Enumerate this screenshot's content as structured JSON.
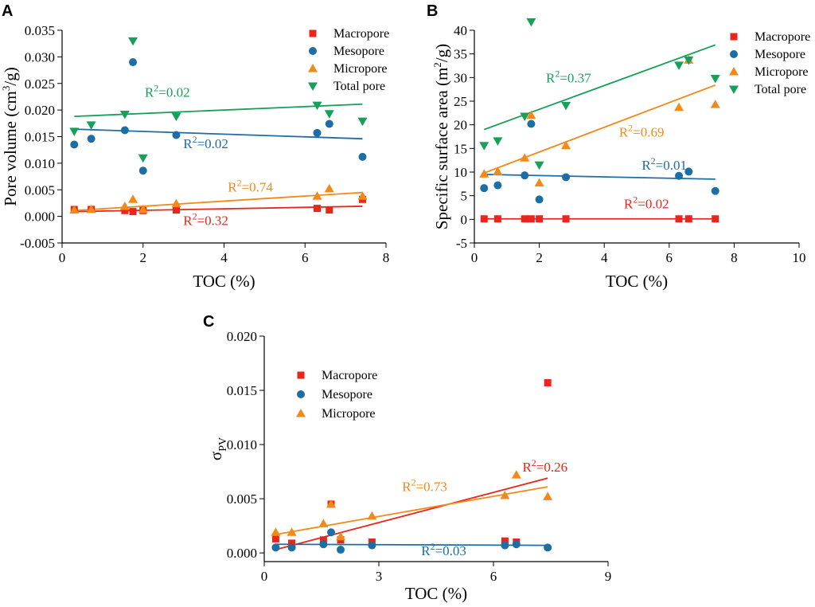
{
  "colors": {
    "Macropore": "#e8261c",
    "Mesopore": "#1c6ea4",
    "Micropore": "#f28a1a",
    "Total pore": "#16a05a"
  },
  "chart_data": [
    {
      "type": "scatter",
      "panel": "A",
      "xlabel": "TOC (%)",
      "ylabel": "Pore volume (cm³/g)",
      "xlim": [
        0,
        8
      ],
      "ylim": [
        -0.005,
        0.035
      ],
      "xticks": [
        0,
        2,
        4,
        6,
        8
      ],
      "yticks": [
        -0.005,
        0.0,
        0.005,
        0.01,
        0.015,
        0.02,
        0.025,
        0.03,
        0.035
      ],
      "ytick_decimals": 3,
      "legend_position": "top-right",
      "series": [
        {
          "name": "Macropore",
          "marker": "square",
          "x": [
            0.3,
            0.72,
            1.55,
            1.75,
            2.0,
            2.82,
            6.3,
            6.6,
            7.42
          ],
          "y": [
            0.0013,
            0.0013,
            0.0011,
            0.0009,
            0.0011,
            0.0012,
            0.0015,
            0.0012,
            0.0032
          ],
          "fit": {
            "x": [
              0.3,
              7.42
            ],
            "y": [
              0.0009,
              0.0019
            ]
          },
          "r2": "R²=0.32"
        },
        {
          "name": "Mesopore",
          "marker": "circle",
          "x": [
            0.3,
            0.72,
            1.55,
            1.75,
            2.0,
            2.82,
            6.3,
            6.6,
            7.42
          ],
          "y": [
            0.0135,
            0.0146,
            0.0162,
            0.029,
            0.0086,
            0.0153,
            0.0157,
            0.0174,
            0.0112
          ],
          "fit": {
            "x": [
              0.3,
              7.42
            ],
            "y": [
              0.0164,
              0.0146
            ]
          },
          "r2": "R²=0.02"
        },
        {
          "name": "Micropore",
          "marker": "triangle-up",
          "x": [
            0.3,
            0.72,
            1.55,
            1.75,
            2.0,
            2.82,
            6.3,
            6.6,
            7.42
          ],
          "y": [
            0.0012,
            0.0013,
            0.0019,
            0.0032,
            0.0013,
            0.0024,
            0.0038,
            0.0052,
            0.0038
          ],
          "fit": {
            "x": [
              0.3,
              7.42
            ],
            "y": [
              0.0011,
              0.0045
            ]
          },
          "r2": "R²=0.74"
        },
        {
          "name": "Total pore",
          "marker": "triangle-down",
          "x": [
            0.3,
            0.72,
            1.55,
            1.75,
            2.0,
            2.82,
            6.3,
            6.6,
            7.42
          ],
          "y": [
            0.016,
            0.0172,
            0.0192,
            0.033,
            0.011,
            0.0188,
            0.0209,
            0.0193,
            0.0179
          ],
          "fit": {
            "x": [
              0.3,
              7.42
            ],
            "y": [
              0.0188,
              0.0211
            ]
          },
          "r2": "R²=0.02"
        }
      ],
      "r2_positions": [
        {
          "series": "Total pore",
          "x": 2.6,
          "y": 0.0225
        },
        {
          "series": "Mesopore",
          "x": 3.55,
          "y": 0.0128
        },
        {
          "series": "Micropore",
          "x": 4.65,
          "y": 0.0047
        },
        {
          "series": "Macropore",
          "x": 3.55,
          "y": -0.0016
        }
      ]
    },
    {
      "type": "scatter",
      "panel": "B",
      "xlabel": "TOC (%)",
      "ylabel": "Specific surface area (m²/g)",
      "xlim": [
        0,
        10
      ],
      "ylim": [
        -5,
        40
      ],
      "xticks": [
        0,
        2,
        4,
        6,
        8,
        10
      ],
      "yticks": [
        -5,
        0,
        5,
        10,
        15,
        20,
        25,
        30,
        35,
        40
      ],
      "ytick_decimals": 0,
      "legend_position": "top-right",
      "series": [
        {
          "name": "Macropore",
          "marker": "square",
          "x": [
            0.3,
            0.72,
            1.55,
            1.75,
            2.0,
            2.82,
            6.3,
            6.6,
            7.42
          ],
          "y": [
            0.1,
            0.1,
            0.1,
            0.1,
            0.1,
            0.1,
            0.1,
            0.1,
            0.1
          ],
          "fit": {
            "x": [
              0.3,
              7.42
            ],
            "y": [
              0.1,
              0.1
            ]
          },
          "r2": "R²=0.02"
        },
        {
          "name": "Mesopore",
          "marker": "circle",
          "x": [
            0.3,
            0.72,
            1.55,
            1.75,
            2.0,
            2.82,
            6.3,
            6.6,
            7.42
          ],
          "y": [
            6.6,
            7.2,
            9.3,
            20.2,
            4.2,
            8.9,
            9.2,
            10.1,
            6.0
          ],
          "fit": {
            "x": [
              0.3,
              7.42
            ],
            "y": [
              9.5,
              8.5
            ]
          },
          "r2": "R²=0.01"
        },
        {
          "name": "Micropore",
          "marker": "triangle-up",
          "x": [
            0.3,
            0.72,
            1.55,
            1.75,
            2.0,
            2.82,
            6.3,
            6.6,
            7.42
          ],
          "y": [
            9.6,
            10.1,
            13.0,
            22.0,
            7.7,
            15.6,
            23.7,
            33.7,
            24.3
          ],
          "fit": {
            "x": [
              0.3,
              7.42
            ],
            "y": [
              9.8,
              28.4
            ]
          },
          "r2": "R²=0.69"
        },
        {
          "name": "Total pore",
          "marker": "triangle-down",
          "x": [
            0.3,
            0.72,
            1.55,
            1.75,
            2.0,
            2.82,
            6.3,
            6.6,
            7.42
          ],
          "y": [
            15.6,
            16.6,
            21.8,
            41.8,
            11.5,
            24.1,
            32.6,
            33.7,
            29.8
          ],
          "fit": {
            "x": [
              0.3,
              7.42
            ],
            "y": [
              19.0,
              36.9
            ]
          },
          "r2": "R²=0.37"
        }
      ],
      "r2_positions": [
        {
          "series": "Total pore",
          "x": 2.9,
          "y": 29.0
        },
        {
          "series": "Micropore",
          "x": 5.15,
          "y": 17.5
        },
        {
          "series": "Mesopore",
          "x": 5.85,
          "y": 10.5
        },
        {
          "series": "Macropore",
          "x": 5.3,
          "y": 2.3
        }
      ]
    },
    {
      "type": "scatter",
      "panel": "C",
      "xlabel": "TOC (%)",
      "ylabel": "σPV",
      "xlim": [
        0,
        9
      ],
      "ylim": [
        -0.0008,
        0.02
      ],
      "xticks": [
        0,
        3,
        6,
        9
      ],
      "yticks": [
        0.0,
        0.005,
        0.01,
        0.015,
        0.02
      ],
      "ytick_decimals": 3,
      "legend_position": "top-left",
      "series": [
        {
          "name": "Macropore",
          "marker": "square",
          "x": [
            0.3,
            0.72,
            1.55,
            1.75,
            2.0,
            2.82,
            6.3,
            6.6,
            7.42
          ],
          "y": [
            0.0013,
            0.0009,
            0.0012,
            0.0045,
            0.0012,
            0.001,
            0.0011,
            0.001,
            0.0157
          ],
          "fit": {
            "x": [
              0.3,
              7.42
            ],
            "y": [
              0.0003,
              0.0069
            ]
          },
          "r2": "R²=0.26"
        },
        {
          "name": "Mesopore",
          "marker": "circle",
          "x": [
            0.3,
            0.72,
            1.55,
            1.75,
            2.0,
            2.82,
            6.3,
            6.6,
            7.42
          ],
          "y": [
            0.0005,
            0.0005,
            0.0008,
            0.0019,
            0.0003,
            0.0007,
            0.0007,
            0.0008,
            0.0005
          ],
          "fit": {
            "x": [
              0.3,
              7.42
            ],
            "y": [
              0.0008,
              0.0007
            ]
          },
          "r2": "R²=0.03"
        },
        {
          "name": "Micropore",
          "marker": "triangle-up",
          "x": [
            0.3,
            0.72,
            1.55,
            1.75,
            2.0,
            2.82,
            6.3,
            6.6,
            7.42
          ],
          "y": [
            0.0019,
            0.0019,
            0.0027,
            0.0045,
            0.0015,
            0.0034,
            0.0053,
            0.0072,
            0.0052
          ],
          "fit": {
            "x": [
              0.3,
              7.42
            ],
            "y": [
              0.0017,
              0.0061
            ]
          },
          "r2": "R²=0.73"
        }
      ],
      "r2_positions": [
        {
          "series": "Micropore",
          "x": 4.2,
          "y": 0.0057
        },
        {
          "series": "Macropore",
          "x": 7.35,
          "y": 0.0075
        },
        {
          "series": "Mesopore",
          "x": 4.7,
          "y": -0.0002
        }
      ]
    }
  ]
}
